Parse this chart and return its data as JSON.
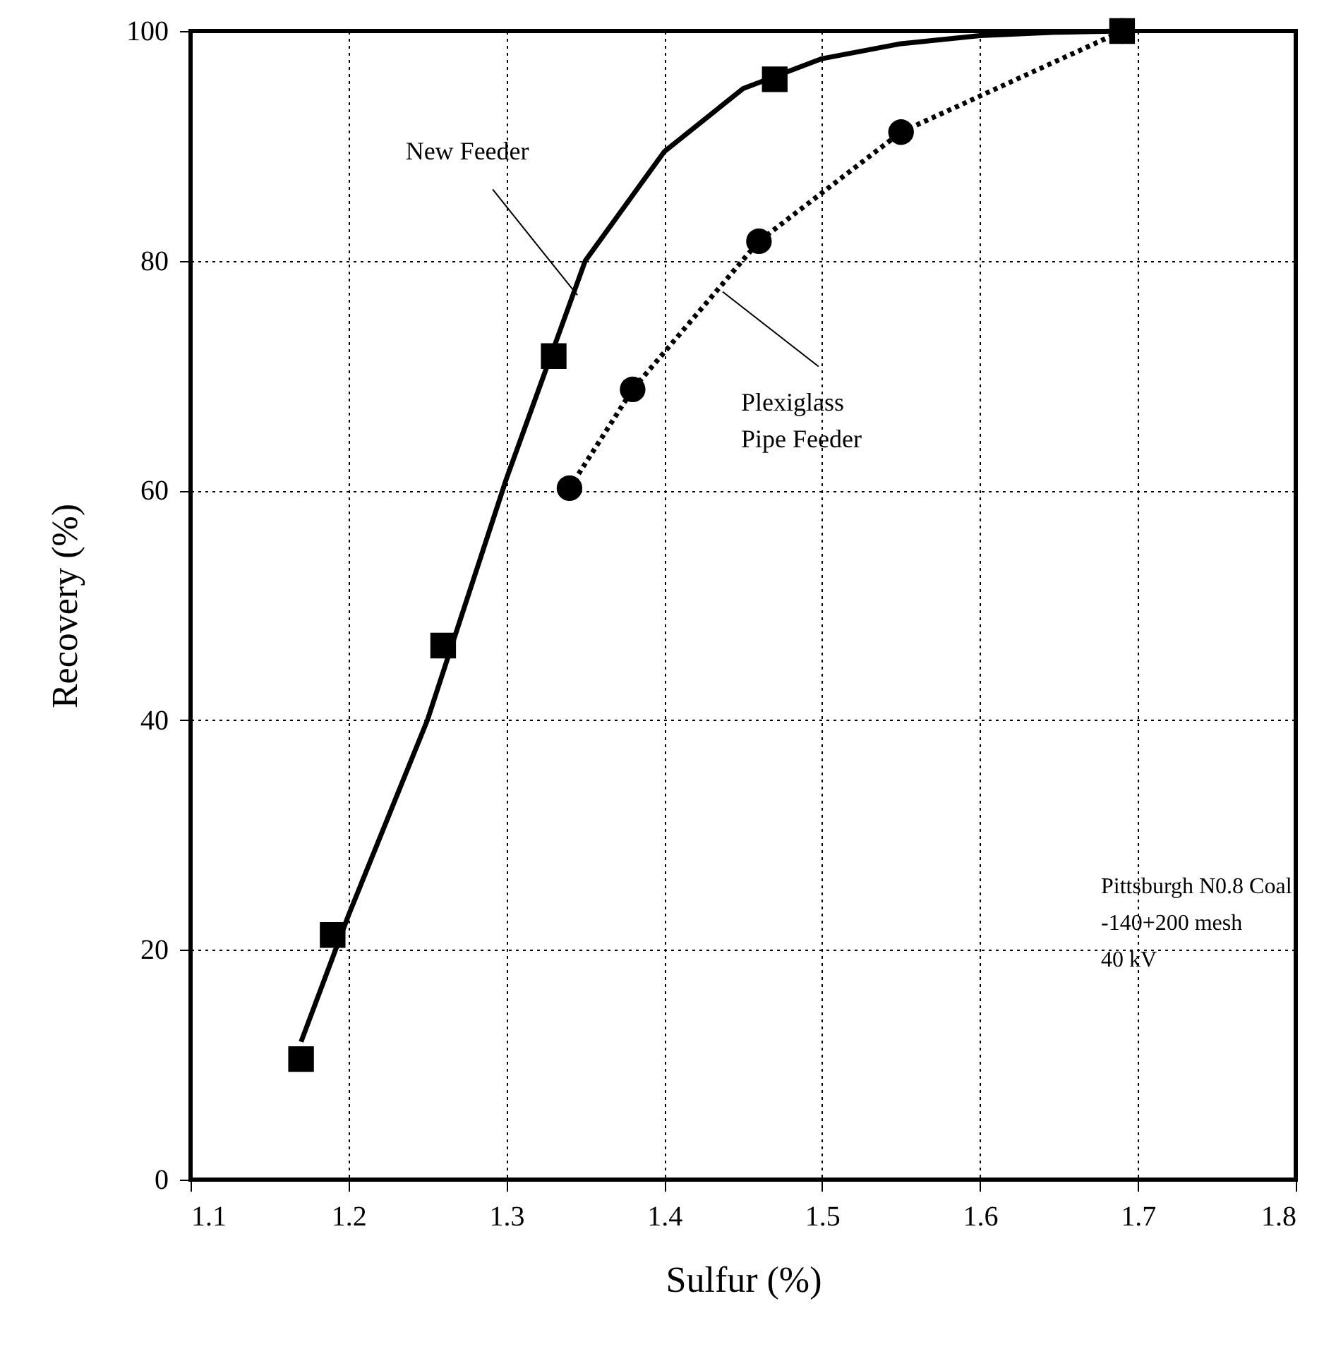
{
  "chart_data": {
    "type": "scatter",
    "xlabel": "Sulfur (%)",
    "ylabel": "Recovery (%)",
    "xlim": [
      1.1,
      1.8
    ],
    "ylim": [
      0,
      100
    ],
    "xticks": [
      1.1,
      1.2,
      1.3,
      1.4,
      1.5,
      1.6,
      1.7,
      1.8
    ],
    "yticks": [
      0,
      20,
      40,
      60,
      80,
      100
    ],
    "grid": true,
    "series": [
      {
        "marker": "square",
        "color": "#000000",
        "x": [
          1.17,
          1.19,
          1.26,
          1.33,
          1.47,
          1.69
        ],
        "values": [
          10.5,
          21.3,
          46.5,
          71.7,
          95.8,
          100
        ]
      },
      {
        "type": "line",
        "line_style": "solid",
        "color": "#000000",
        "x": [
          1.17,
          1.2,
          1.25,
          1.3,
          1.35,
          1.4,
          1.45,
          1.5,
          1.55,
          1.6,
          1.65,
          1.69
        ],
        "values": [
          12,
          23,
          40,
          61,
          80,
          89.5,
          95,
          97.6,
          98.9,
          99.6,
          99.9,
          100
        ]
      },
      {
        "type": "line",
        "line_style": "dotted",
        "marker": "circle",
        "color": "#000000",
        "x": [
          1.34,
          1.38,
          1.46,
          1.55,
          1.69
        ],
        "values": [
          60.2,
          68.8,
          81.7,
          91.2,
          100
        ]
      }
    ],
    "annotations": [
      {
        "text": "New Feeder",
        "x": 1.345,
        "y": 77
      },
      {
        "text": "Plexiglass\nPipe Feeder",
        "x": 1.437,
        "y": 77.3
      },
      "Pittsburgh N0.8 Coal\n-140+200 mesh\n40 kV"
    ]
  }
}
